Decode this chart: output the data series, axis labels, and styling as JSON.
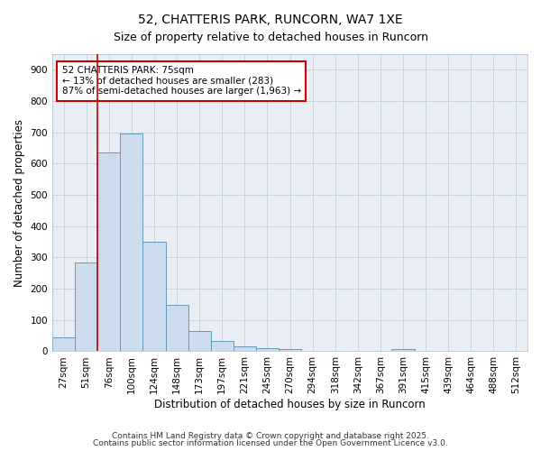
{
  "title1": "52, CHATTERIS PARK, RUNCORN, WA7 1XE",
  "title2": "Size of property relative to detached houses in Runcorn",
  "xlabel": "Distribution of detached houses by size in Runcorn",
  "ylabel": "Number of detached properties",
  "bar_color": "#ccdcec",
  "bar_edge_color": "#6699bb",
  "categories": [
    "27sqm",
    "51sqm",
    "76sqm",
    "100sqm",
    "124sqm",
    "148sqm",
    "173sqm",
    "197sqm",
    "221sqm",
    "245sqm",
    "270sqm",
    "294sqm",
    "318sqm",
    "342sqm",
    "367sqm",
    "391sqm",
    "415sqm",
    "439sqm",
    "464sqm",
    "488sqm",
    "512sqm"
  ],
  "values": [
    45,
    283,
    635,
    697,
    350,
    147,
    65,
    32,
    15,
    10,
    8,
    0,
    0,
    0,
    0,
    8,
    0,
    0,
    0,
    0,
    0
  ],
  "ylim": [
    0,
    950
  ],
  "yticks": [
    0,
    100,
    200,
    300,
    400,
    500,
    600,
    700,
    800,
    900
  ],
  "vline_x_index": 2,
  "vline_color": "#cc0000",
  "annotation_text": "52 CHATTERIS PARK: 75sqm\n← 13% of detached houses are smaller (283)\n87% of semi-detached houses are larger (1,963) →",
  "annotation_box_color": "#ffffff",
  "annotation_edge_color": "#cc0000",
  "footnote1": "Contains HM Land Registry data © Crown copyright and database right 2025.",
  "footnote2": "Contains public sector information licensed under the Open Government Licence v3.0.",
  "fig_bg_color": "#ffffff",
  "plot_bg_color": "#e8eef4",
  "grid_color": "#c5cfd8",
  "title1_fontsize": 10,
  "title2_fontsize": 9,
  "axis_label_fontsize": 8.5,
  "tick_fontsize": 7.5,
  "footnote_fontsize": 6.5,
  "annotation_fontsize": 7.5
}
